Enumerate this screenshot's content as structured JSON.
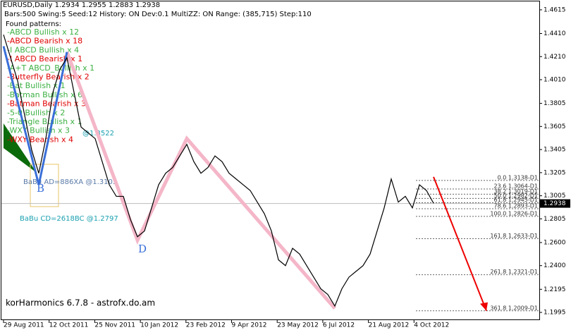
{
  "chart_data": {
    "type": "line",
    "symbol_line": "EURUSD,Daily  1.2934 1.2955 1.2883 1.2938",
    "info_line": "Bars:500  Swing:5  Seed:12  History: ON Dev:0.1  MultiZZ: ON  Range: (385,715)  Step:110",
    "patterns_title": "Found patterns:",
    "patterns": [
      {
        "text": "-ABCD Bullish x 12",
        "color": "#3cb043"
      },
      {
        "text": "-ABCD Bearish x 18",
        "color": "#e00000"
      },
      {
        "text": "-I ABCD Bullish x 4",
        "color": "#3cb043"
      },
      {
        "text": "-I ABCD Bearish x 1",
        "color": "#e00000"
      },
      {
        "text": "-A+T ABCD_Bullish x 1",
        "color": "#3cb043"
      },
      {
        "text": "-Butterfly Bearish x 2",
        "color": "#e00000"
      },
      {
        "text": "-Bat Bullish x 1",
        "color": "#3cb043"
      },
      {
        "text": "-Batman Bullish x 6",
        "color": "#3cb043"
      },
      {
        "text": "-Batman Bearish x 3",
        "color": "#e00000"
      },
      {
        "text": "-5-0 Bullish x 2",
        "color": "#3cb043"
      },
      {
        "text": "-Triangle Bullish x 1",
        "color": "#3cb043"
      },
      {
        "text": "-WXY Bullish x 3",
        "color": "#3cb043"
      },
      {
        "text": "-WXY Bearish x 4",
        "color": "#e00000"
      }
    ],
    "series": [
      {
        "color": "#000000",
        "values": [
          1.44,
          1.42,
          1.4,
          1.37,
          1.34,
          1.32,
          1.35,
          1.39,
          1.41,
          1.42,
          1.39,
          1.36,
          1.355,
          1.35,
          1.33,
          1.31,
          1.3,
          1.3,
          1.28,
          1.265,
          1.27,
          1.29,
          1.31,
          1.32,
          1.325,
          1.335,
          1.345,
          1.33,
          1.32,
          1.325,
          1.335,
          1.33,
          1.32,
          1.315,
          1.31,
          1.305,
          1.295,
          1.285,
          1.27,
          1.245,
          1.24,
          1.255,
          1.25,
          1.24,
          1.23,
          1.22,
          1.215,
          1.205,
          1.22,
          1.23,
          1.235,
          1.24,
          1.25,
          1.27,
          1.29,
          1.315,
          1.295,
          1.3,
          1.29,
          1.31,
          1.305,
          1.294
        ]
      }
    ],
    "pattern_lines": [
      {
        "color": "#f4b6c8",
        "x": [
          9,
          19,
          26,
          47
        ],
        "y": [
          1.425,
          1.262,
          1.35,
          1.203
        ]
      },
      {
        "color": "#3a6fd8",
        "x": [
          0,
          5,
          9
        ],
        "y": [
          1.43,
          1.31,
          1.425
        ]
      }
    ],
    "ylim": [
      1.1922,
      1.47
    ],
    "yticks": [
      1.4615,
      {
        "value": 1.441,
        "label": "1.4410"
      },
      {
        "value": 1.421,
        "label": "1.4210"
      },
      {
        "value": 1.401,
        "label": "1.4010"
      },
      1.3805,
      1.3605,
      1.3405,
      1.3205,
      1.3005,
      1.2805,
      {
        "value": 1.26,
        "label": "1.2600"
      },
      {
        "value": 1.24,
        "label": "1.2400"
      },
      1.2195,
      1.1995
    ],
    "xlabels": [
      "29 Aug 2011",
      "12 Oct 2011",
      "25 Nov 2011",
      "10 Jan 2012",
      "23 Feb 2012",
      "9 Apr 2012",
      "23 May 2012",
      "6 Jul 2012",
      "21 Aug 2012",
      "4 Oct 2012"
    ],
    "current_price": 1.2938,
    "fib_levels": [
      {
        "value": 1.3138,
        "label": "0.0 1.3138-D1"
      },
      {
        "value": 1.3064,
        "label": "23.6 1.3064-D1"
      },
      {
        "value": 1.3019,
        "label": "38.2 1.3019-D1"
      },
      {
        "value": 1.2982,
        "label": "50.0 1.2982-D1"
      },
      {
        "value": 1.2945,
        "label": "61.8 1.2945-D1"
      },
      {
        "value": 1.2893,
        "label": "78.6 1.2893-D1"
      },
      {
        "value": 1.2826,
        "label": "100.0 1.2826-D1"
      },
      {
        "value": 1.2633,
        "label": "161.8 1.2633-D1"
      },
      {
        "value": 1.2321,
        "label": "261.8 1.2321-D1"
      },
      {
        "value": 1.2009,
        "label": "361.8 1.2009-D1"
      }
    ],
    "annotations": {
      "b": "B",
      "d": "D",
      "ad": "BaBu AD=886XA   @1.3105",
      "cd": "BaBu CD=2618BC   @1.2797",
      "x_price": "@1.3522"
    },
    "footer": "korHarmonics 6.7.8 - astrofx.do.am"
  }
}
